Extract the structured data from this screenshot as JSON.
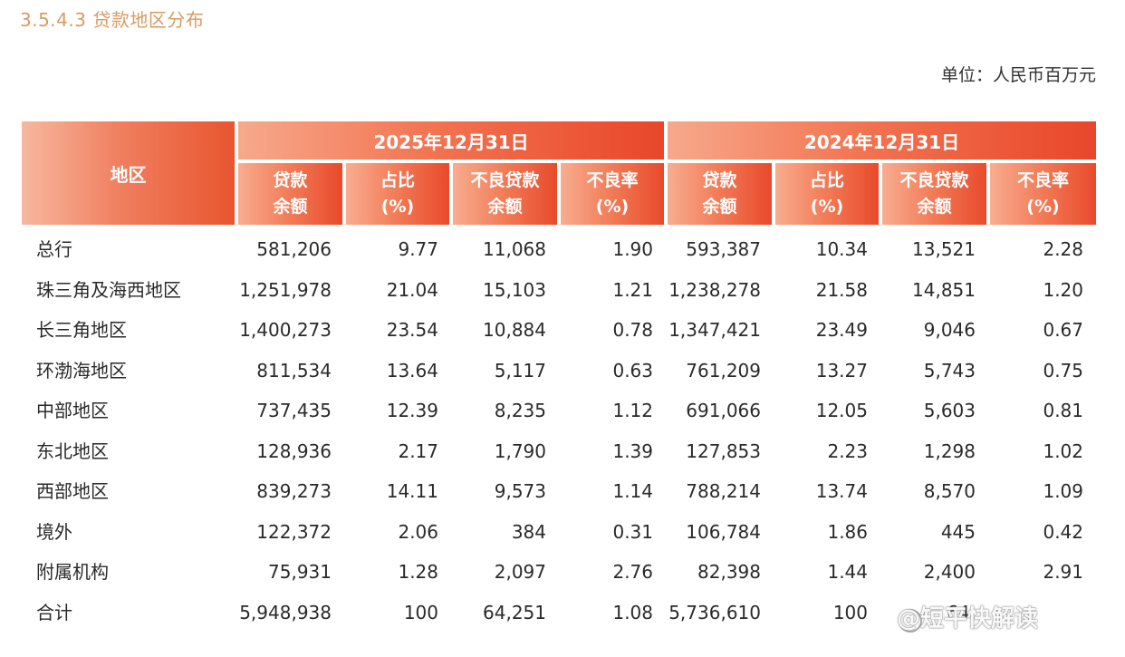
{
  "section_title": "3.5.4.3 贷款地区分布",
  "unit": "单位：人民币百万元",
  "header": {
    "region": "地区",
    "period_2025": "2025年12月31日",
    "period_2024": "2024年12月31日",
    "cols": [
      [
        "贷款",
        "余额"
      ],
      [
        "占比",
        "(%)"
      ],
      [
        "不良贷款",
        "余额"
      ],
      [
        "不良率",
        "(%)"
      ]
    ]
  },
  "rows": [
    {
      "region": "总行",
      "v": [
        "581,206",
        "9.77",
        "11,068",
        "1.90",
        "593,387",
        "10.34",
        "13,521",
        "2.28"
      ]
    },
    {
      "region": "珠三角及海西地区",
      "v": [
        "1,251,978",
        "21.04",
        "15,103",
        "1.21",
        "1,238,278",
        "21.58",
        "14,851",
        "1.20"
      ]
    },
    {
      "region": "长三角地区",
      "v": [
        "1,400,273",
        "23.54",
        "10,884",
        "0.78",
        "1,347,421",
        "23.49",
        "9,046",
        "0.67"
      ]
    },
    {
      "region": "环渤海地区",
      "v": [
        "811,534",
        "13.64",
        "5,117",
        "0.63",
        "761,209",
        "13.27",
        "5,743",
        "0.75"
      ]
    },
    {
      "region": "中部地区",
      "v": [
        "737,435",
        "12.39",
        "8,235",
        "1.12",
        "691,066",
        "12.05",
        "5,603",
        "0.81"
      ]
    },
    {
      "region": "东北地区",
      "v": [
        "128,936",
        "2.17",
        "1,790",
        "1.39",
        "127,853",
        "2.23",
        "1,298",
        "1.02"
      ]
    },
    {
      "region": "西部地区",
      "v": [
        "839,273",
        "14.11",
        "9,573",
        "1.14",
        "788,214",
        "13.74",
        "8,570",
        "1.09"
      ]
    },
    {
      "region": "境外",
      "v": [
        "122,372",
        "2.06",
        "384",
        "0.31",
        "106,784",
        "1.86",
        "445",
        "0.42"
      ]
    },
    {
      "region": "附属机构",
      "v": [
        "75,931",
        "1.28",
        "2,097",
        "2.76",
        "82,398",
        "1.44",
        "2,400",
        "2.91"
      ]
    },
    {
      "region": "合计",
      "v": [
        "5,948,938",
        "100",
        "64,251",
        "1.08",
        "5,736,610",
        "100",
        "64,",
        ""
      ]
    }
  ],
  "watermark": "@短平快解读"
}
